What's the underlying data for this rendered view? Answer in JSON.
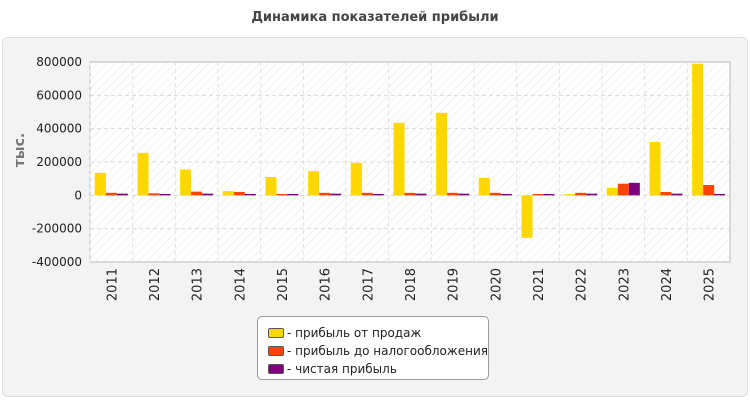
{
  "chart_data": {
    "type": "bar",
    "title": "Динамика показателей прибыли",
    "ylabel": "тыс.",
    "xlabel": "",
    "ylim": [
      -400000,
      800000
    ],
    "yticks": [
      800000,
      600000,
      400000,
      200000,
      0,
      -200000,
      -400000
    ],
    "categories": [
      "2011",
      "2012",
      "2013",
      "2014",
      "2015",
      "2016",
      "2017",
      "2018",
      "2019",
      "2020",
      "2021",
      "2022",
      "2023",
      "2024",
      "2025"
    ],
    "series": [
      {
        "name": "- прибыль от продаж",
        "color": "#ffd700",
        "values": [
          135000,
          255000,
          155000,
          25000,
          110000,
          145000,
          195000,
          435000,
          495000,
          105000,
          -255000,
          8000,
          45000,
          320000,
          790000
        ]
      },
      {
        "name": "- прибыль до налогообложения",
        "color": "#ff4500",
        "values": [
          15000,
          12000,
          22000,
          20000,
          8000,
          15000,
          15000,
          15000,
          15000,
          15000,
          8000,
          15000,
          70000,
          20000,
          62000
        ]
      },
      {
        "name": "- чистая прибыль",
        "color": "#800080",
        "values": [
          10000,
          8000,
          10000,
          8000,
          8000,
          10000,
          8000,
          10000,
          10000,
          8000,
          8000,
          10000,
          75000,
          10000,
          8000
        ]
      }
    ],
    "grid": true,
    "legend_position": "bottom-center"
  }
}
